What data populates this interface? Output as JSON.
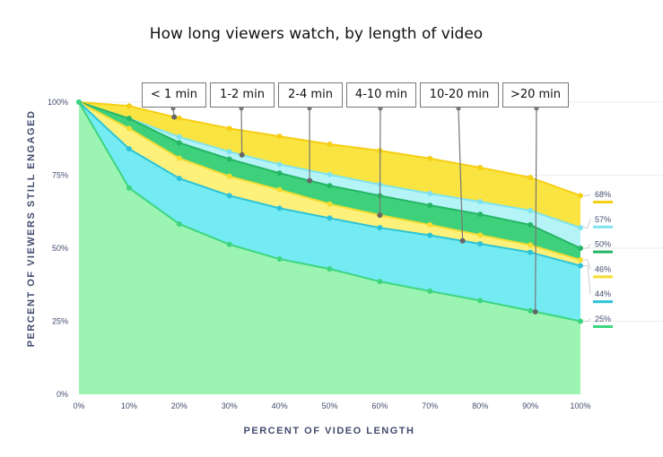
{
  "chart_data": {
    "type": "area",
    "title": "How long viewers watch, by length of video",
    "xlabel": "PERCENT OF VIDEO LENGTH",
    "ylabel": "PERCENT OF VIEWERS STILL ENGAGED",
    "x": [
      0,
      10,
      20,
      30,
      40,
      50,
      60,
      70,
      80,
      90,
      100
    ],
    "x_tick_labels": [
      "0%",
      "10%",
      "20%",
      "30%",
      "40%",
      "50%",
      "60%",
      "70%",
      "80%",
      "90%",
      "100%"
    ],
    "y_tick_labels": [
      "100%",
      "75%",
      "50%",
      "25%",
      "0%"
    ],
    "ylim": [
      0,
      100
    ],
    "grid": true,
    "series": [
      {
        "name": "< 1 min",
        "values": [
          100,
          98.7,
          94.5,
          91,
          88.3,
          85.6,
          83.4,
          80.7,
          77.6,
          74.2,
          68
        ],
        "end_label": "68%",
        "line": "#f5cf14",
        "fill": "#fae442"
      },
      {
        "name": "1-2 min",
        "values": [
          100,
          94.4,
          88.1,
          83,
          78.7,
          75.2,
          71.8,
          68.7,
          65.9,
          62.9,
          57
        ],
        "end_label": "57%",
        "line": "#7fe3ef",
        "fill": "#b4f4f7"
      },
      {
        "name": "2-4 min",
        "values": [
          100,
          94.4,
          86.1,
          80.5,
          75.7,
          71.4,
          68,
          64.7,
          61.6,
          58,
          50
        ],
        "end_label": "50%",
        "line": "#25b565",
        "fill": "#3fd07b"
      },
      {
        "name": "4-10 min",
        "values": [
          100,
          91,
          80.8,
          74.6,
          70,
          65.1,
          61.3,
          58,
          54.5,
          51.1,
          46
        ],
        "end_label": "46%",
        "line": "#f5dc30",
        "fill": "#fdf17c"
      },
      {
        "name": "10-20 min",
        "values": [
          100,
          84,
          73.9,
          68,
          63.7,
          60.3,
          57,
          54.4,
          51.5,
          48.6,
          44
        ],
        "end_label": "44%",
        "line": "#2cc3d8",
        "fill": "#74ebf2"
      },
      {
        "name": ">20 min",
        "values": [
          100,
          70.6,
          58.3,
          51.3,
          46.3,
          42.9,
          38.6,
          35.3,
          32.1,
          28.6,
          25
        ],
        "end_label": "25%",
        "line": "#3dd580",
        "fill": "#9bf4b1"
      }
    ],
    "label_pointers": [
      {
        "series": "< 1 min",
        "x": 19
      },
      {
        "series": "1-2 min",
        "x": 32.5
      },
      {
        "series": "2-4 min",
        "x": 46
      },
      {
        "series": "4-10 min",
        "x": 60
      },
      {
        "series": "10-20 min",
        "x": 76.5
      },
      {
        "series": ">20 min",
        "x": 91
      }
    ]
  }
}
